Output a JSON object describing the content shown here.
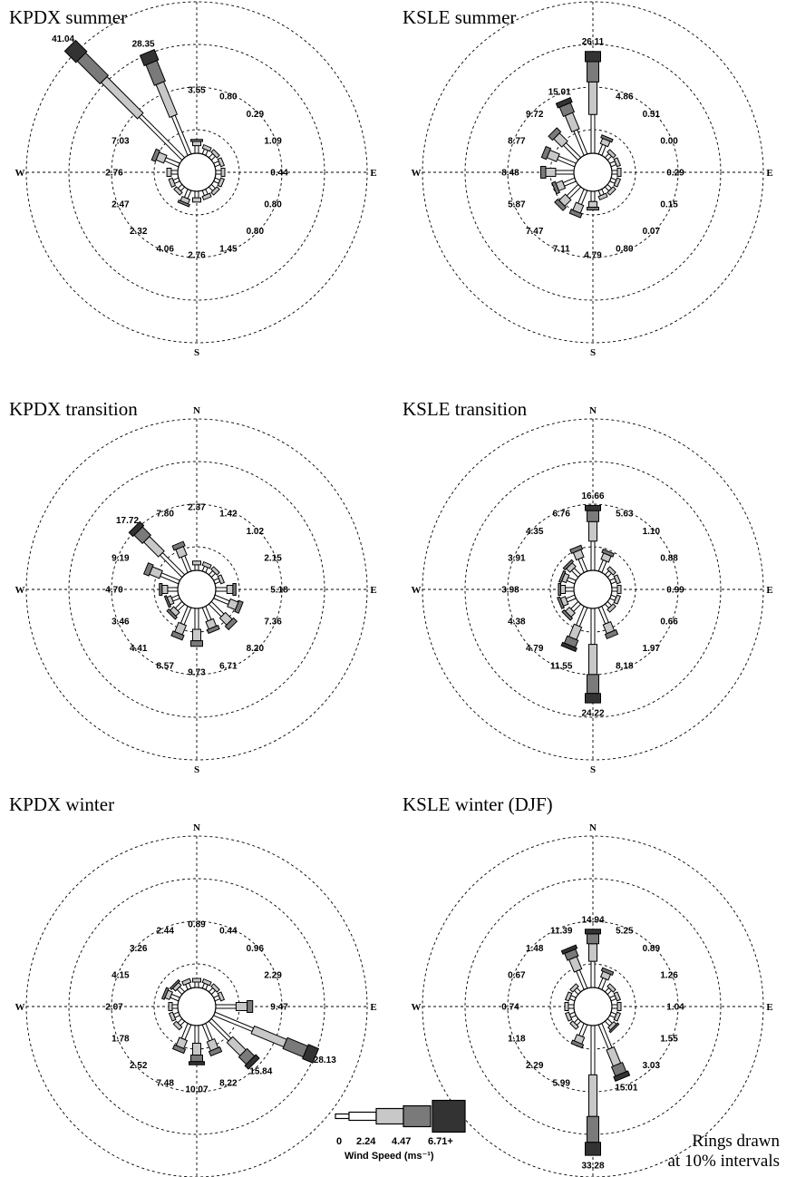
{
  "chart_data": {
    "type": "windrose",
    "direction_labels": [
      "N",
      "E",
      "S",
      "W"
    ],
    "panels": [
      {
        "title": "KPDX summer",
        "directions_deg": [
          0,
          22.5,
          45,
          67.5,
          90,
          112.5,
          135,
          157.5,
          180,
          202.5,
          225,
          247.5,
          270,
          292.5,
          315,
          337.5
        ],
        "percent_labels": [
          "3.55",
          "0.80",
          "0.29",
          "1.09",
          "0.44",
          "0.80",
          "0.80",
          "1.45",
          "2.76",
          "4.06",
          "2.32",
          "2.47",
          "2.76",
          "7.03",
          "41.04",
          "28.35"
        ],
        "percent": [
          3.55,
          0.8,
          0.29,
          1.09,
          0.44,
          0.8,
          0.8,
          1.45,
          2.76,
          4.06,
          2.32,
          2.47,
          2.76,
          7.03,
          41.04,
          28.35
        ]
      },
      {
        "title": "KSLE summer",
        "directions_deg": [
          0,
          22.5,
          45,
          67.5,
          90,
          112.5,
          135,
          157.5,
          180,
          202.5,
          225,
          247.5,
          270,
          292.5,
          315,
          337.5
        ],
        "percent_labels": [
          "26.11",
          "4.86",
          "0.51",
          "0.00",
          "0.29",
          "0.15",
          "0.07",
          "0.80",
          "4.79",
          "7.11",
          "7.47",
          "5.87",
          "8.48",
          "8.77",
          "9.72",
          "15.01"
        ],
        "percent": [
          26.11,
          4.86,
          0.51,
          0.0,
          0.29,
          0.15,
          0.07,
          0.8,
          4.79,
          7.11,
          7.47,
          5.87,
          8.48,
          8.77,
          9.72,
          15.01
        ]
      },
      {
        "title": "KPDX transition",
        "directions_deg": [
          0,
          22.5,
          45,
          67.5,
          90,
          112.5,
          135,
          157.5,
          180,
          202.5,
          225,
          247.5,
          270,
          292.5,
          315,
          337.5
        ],
        "percent_labels": [
          "2.37",
          "1.42",
          "1.02",
          "2.15",
          "5.18",
          "7.36",
          "8.20",
          "6.71",
          "9.73",
          "8.57",
          "4.41",
          "3.46",
          "4.70",
          "9.19",
          "17.72",
          "7.80"
        ],
        "percent": [
          2.37,
          1.42,
          1.02,
          2.15,
          5.18,
          7.36,
          8.2,
          6.71,
          9.73,
          8.57,
          4.41,
          3.46,
          4.7,
          9.19,
          17.72,
          7.8
        ]
      },
      {
        "title": "KSLE transition",
        "directions_deg": [
          0,
          22.5,
          45,
          67.5,
          90,
          112.5,
          135,
          157.5,
          180,
          202.5,
          225,
          247.5,
          270,
          292.5,
          315,
          337.5
        ],
        "percent_labels": [
          "16.66",
          "5.63",
          "1.10",
          "0.88",
          "0.99",
          "0.66",
          "1.97",
          "8.18",
          "24.22",
          "11.55",
          "4.79",
          "4.38",
          "3.98",
          "3.91",
          "4.35",
          "6.76"
        ],
        "percent": [
          16.66,
          5.63,
          1.1,
          0.88,
          0.99,
          0.66,
          1.97,
          8.18,
          24.22,
          11.55,
          4.79,
          4.38,
          3.98,
          3.91,
          4.35,
          6.76
        ]
      },
      {
        "title": "KPDX winter",
        "directions_deg": [
          0,
          22.5,
          45,
          67.5,
          90,
          112.5,
          135,
          157.5,
          180,
          202.5,
          225,
          247.5,
          270,
          292.5,
          315,
          337.5
        ],
        "percent_labels": [
          "0.89",
          "0.44",
          "0.96",
          "2.29",
          "9.47",
          "28.13",
          "15.84",
          "8.22",
          "10.07",
          "7.48",
          "2.52",
          "1.78",
          "2.07",
          "4.15",
          "3.26",
          "2.44"
        ],
        "percent": [
          0.89,
          0.44,
          0.96,
          2.29,
          9.47,
          28.13,
          15.84,
          8.22,
          10.07,
          7.48,
          2.52,
          1.78,
          2.07,
          4.15,
          3.26,
          2.44
        ]
      },
      {
        "title": "KSLE winter (DJF)",
        "directions_deg": [
          0,
          22.5,
          45,
          67.5,
          90,
          112.5,
          135,
          157.5,
          180,
          202.5,
          225,
          247.5,
          270,
          292.5,
          315,
          337.5
        ],
        "percent_labels": [
          "14.94",
          "5.25",
          "0.89",
          "1.26",
          "1.04",
          "1.55",
          "3.03",
          "15.01",
          "33.28",
          "5.99",
          "2.29",
          "1.18",
          "0.74",
          "0.67",
          "1.48",
          "11.39"
        ],
        "percent": [
          14.94,
          5.25,
          0.89,
          1.26,
          1.04,
          1.55,
          3.03,
          15.01,
          33.28,
          5.99,
          2.29,
          1.18,
          0.74,
          0.67,
          1.48,
          11.39
        ]
      }
    ],
    "rings_percent": [
      10,
      20,
      30,
      40
    ],
    "legend": {
      "title": "Wind Speed (ms⁻¹)",
      "bins": [
        "0",
        "2.24",
        "4.47",
        "6.71+"
      ],
      "colors": [
        "#ffffff",
        "#c8c8c8",
        "#7a7a7a",
        "#333333"
      ]
    },
    "note": [
      "Rings drawn",
      "at 10% intervals"
    ]
  }
}
